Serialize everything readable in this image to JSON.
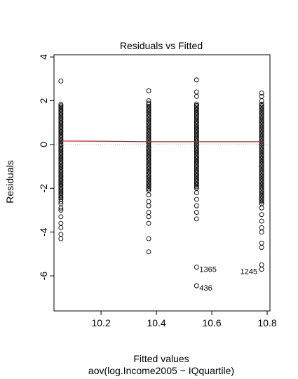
{
  "chart_data": {
    "type": "scatter",
    "title": "Residuals vs Fitted",
    "xlabel": "Fitted values",
    "subtitle": "aov(log.Income2005 ~ IQquartile)",
    "ylabel": "Residuals",
    "xlim": [
      10.03,
      10.81
    ],
    "ylim": [
      -7.6,
      4.1
    ],
    "x_ticks": [
      10.2,
      10.4,
      10.6,
      10.8
    ],
    "x_tick_labels": [
      "10.2",
      "10.4",
      "10.6",
      "10.8"
    ],
    "y_ticks": [
      -6,
      -4,
      -2,
      0,
      2,
      4
    ],
    "y_tick_labels": [
      "-6",
      "-4",
      "-2",
      "0",
      "2",
      "4"
    ],
    "groups": [
      {
        "fitted": 10.055,
        "dense_range": [
          -2.5,
          1.9
        ],
        "outliers": [
          2.9,
          -2.6,
          -2.7,
          -2.9,
          -3.0,
          -3.3,
          -3.6,
          -3.8,
          -4.1,
          -4.3
        ]
      },
      {
        "fitted": 10.372,
        "dense_range": [
          -2.1,
          1.9
        ],
        "outliers": [
          2.45,
          2.0,
          -2.3,
          -2.6,
          -2.8,
          -3.1,
          -3.3,
          -3.6,
          -4.3,
          -4.9
        ]
      },
      {
        "fitted": 10.545,
        "dense_range": [
          -2.0,
          1.9
        ],
        "outliers": [
          2.95,
          2.4,
          2.2,
          -2.2,
          -2.5,
          -2.8,
          -3.1,
          -3.4,
          -5.6,
          -6.45
        ]
      },
      {
        "fitted": 10.78,
        "dense_range": [
          -2.7,
          1.9
        ],
        "outliers": [
          2.35,
          2.2,
          2.0,
          -2.9,
          -3.2,
          -3.5,
          -3.8,
          -4.0,
          -4.5,
          -4.7,
          -5.5,
          -5.7
        ]
      }
    ],
    "smoother": {
      "color": "#ff0000",
      "x": [
        10.055,
        10.21,
        10.372,
        10.545,
        10.78
      ],
      "y": [
        0.16,
        0.15,
        0.13,
        0.13,
        0.13
      ]
    },
    "reference_line": {
      "y": 0,
      "color": "#bbbbbb",
      "style": "dotted"
    },
    "point_labels": [
      {
        "text": "1365",
        "x": 10.545,
        "y": -5.6,
        "side": "right"
      },
      {
        "text": "436",
        "x": 10.545,
        "y": -6.45,
        "side": "right"
      },
      {
        "text": "1245",
        "x": 10.78,
        "y": -5.7,
        "side": "left"
      }
    ]
  }
}
